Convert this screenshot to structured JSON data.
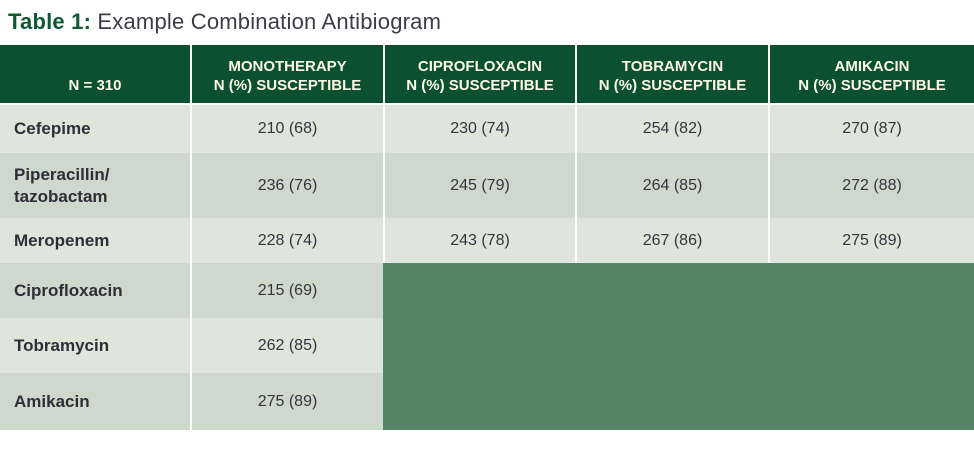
{
  "title": {
    "label": "Table 1:",
    "text": " Example Combination Antibiogram"
  },
  "table": {
    "header": {
      "corner_label": "N = 310",
      "columns": [
        {
          "line1": "MONOTHERAPY",
          "line2": "N (%) SUSCEPTIBLE"
        },
        {
          "line1": "CIPROFLOXACIN",
          "line2": "N (%) SUSCEPTIBLE"
        },
        {
          "line1": "TOBRAMYCIN",
          "line2": "N (%) SUSCEPTIBLE"
        },
        {
          "line1": "AMIKACIN",
          "line2": "N (%) SUSCEPTIBLE"
        }
      ]
    },
    "rows": [
      {
        "drug": "Cefepime",
        "values": [
          "210 (68)",
          "230 (74)",
          "254 (82)",
          "270 (87)"
        ]
      },
      {
        "drug": "Piperacillin/\ntazobactam",
        "values": [
          "236 (76)",
          "245 (79)",
          "264 (85)",
          "272 (88)"
        ]
      },
      {
        "drug": "Meropenem",
        "values": [
          "228 (74)",
          "243 (78)",
          "267 (86)",
          "275 (89)"
        ]
      },
      {
        "drug": "Ciprofloxacin",
        "values": [
          "215 (69)"
        ]
      },
      {
        "drug": "Tobramycin",
        "values": [
          "262 (85)"
        ]
      },
      {
        "drug": "Amikacin",
        "values": [
          "275 (89)"
        ]
      }
    ]
  },
  "chart_data": {
    "type": "table",
    "title": "Table 1: Example Combination Antibiogram",
    "n_total": 310,
    "column_headers": [
      "N = 310",
      "MONOTHERAPY N (%) SUSCEPTIBLE",
      "CIPROFLOXACIN N (%) SUSCEPTIBLE",
      "TOBRAMYCIN N (%) SUSCEPTIBLE",
      "AMIKACIN N (%) SUSCEPTIBLE"
    ],
    "row_headers": [
      "Cefepime",
      "Piperacillin/tazobactam",
      "Meropenem",
      "Ciprofloxacin",
      "Tobramycin",
      "Amikacin"
    ],
    "cells": [
      [
        "210 (68)",
        "230 (74)",
        "254 (82)",
        "270 (87)"
      ],
      [
        "236 (76)",
        "245 (79)",
        "264 (85)",
        "272 (88)"
      ],
      [
        "228 (74)",
        "243 (78)",
        "267 (86)",
        "275 (89)"
      ],
      [
        "215 (69)",
        null,
        null,
        null
      ],
      [
        "262 (85)",
        null,
        null,
        null
      ],
      [
        "275 (89)",
        null,
        null,
        null
      ]
    ]
  },
  "colors": {
    "header_green": "#0b5130",
    "title_green": "#0d5a31",
    "header_text_cream": "#fdf8e4",
    "row_light": "#dee6db",
    "row_dark": "#cdd9cc",
    "merged_block_green": "#558564",
    "body_text": "#34343e"
  }
}
